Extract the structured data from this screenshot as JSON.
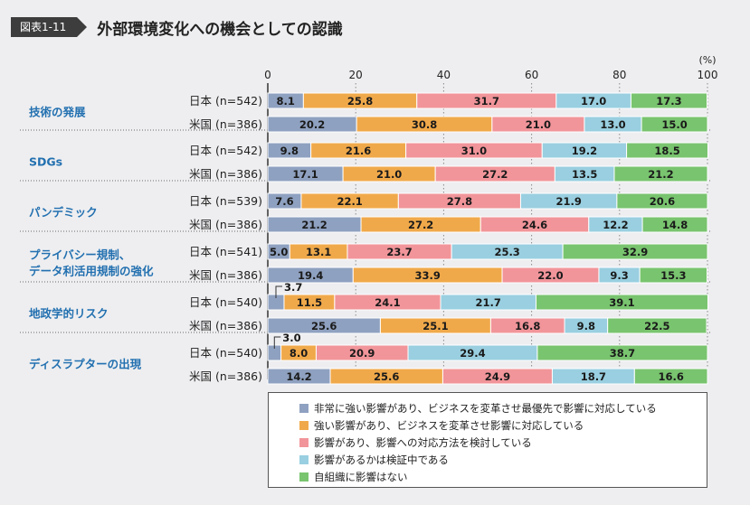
{
  "figure": {
    "tag": "図表1-11",
    "title": "外部環境変化への機会としての認識"
  },
  "chart_data": {
    "type": "bar",
    "orientation": "horizontal",
    "stacked": true,
    "unit_label": "(%)",
    "xlim": [
      0,
      100
    ],
    "x_ticks": [
      "0",
      "20",
      "40",
      "60",
      "80",
      "100"
    ],
    "grid": true,
    "legend_position": "bottom-right",
    "groups": [
      {
        "label": "技術の発展",
        "rows": [
          {
            "label": "日本 (n=542)",
            "values": [
              8.1,
              25.8,
              31.7,
              17.0,
              17.3
            ]
          },
          {
            "label": "米国 (n=386)",
            "values": [
              20.2,
              30.8,
              21.0,
              13.0,
              15.0
            ]
          }
        ]
      },
      {
        "label": "SDGs",
        "rows": [
          {
            "label": "日本 (n=542)",
            "values": [
              9.8,
              21.6,
              31.0,
              19.2,
              18.5
            ]
          },
          {
            "label": "米国 (n=386)",
            "values": [
              17.1,
              21.0,
              27.2,
              13.5,
              21.2
            ]
          }
        ]
      },
      {
        "label": "パンデミック",
        "rows": [
          {
            "label": "日本 (n=539)",
            "values": [
              7.6,
              22.1,
              27.8,
              21.9,
              20.6
            ]
          },
          {
            "label": "米国 (n=386)",
            "values": [
              21.2,
              27.2,
              24.6,
              12.2,
              14.8
            ]
          }
        ]
      },
      {
        "label": "プライバシー規制、\nデータ利活用規制の強化",
        "rows": [
          {
            "label": "日本 (n=541)",
            "values": [
              5.0,
              13.1,
              23.7,
              25.3,
              32.9
            ]
          },
          {
            "label": "米国 (n=386)",
            "values": [
              19.4,
              33.9,
              22.0,
              9.3,
              15.3
            ]
          }
        ]
      },
      {
        "label": "地政学的リスク",
        "rows": [
          {
            "label": "日本 (n=540)",
            "values": [
              3.7,
              11.5,
              24.1,
              21.7,
              39.1
            ]
          },
          {
            "label": "米国 (n=386)",
            "values": [
              25.6,
              25.1,
              16.8,
              9.8,
              22.5
            ]
          }
        ]
      },
      {
        "label": "ディスラプターの出現",
        "rows": [
          {
            "label": "日本 (n=540)",
            "values": [
              3.0,
              8.0,
              20.9,
              29.4,
              38.7
            ]
          },
          {
            "label": "米国 (n=386)",
            "values": [
              14.2,
              25.6,
              24.9,
              18.7,
              16.6
            ]
          }
        ]
      }
    ],
    "series": [
      {
        "name": "非常に強い影響があり、ビジネスを変革させ最優先で影響に対応している",
        "color": "#8fa1c0"
      },
      {
        "name": "強い影響があり、ビジネスを変革させ影響に対応している",
        "color": "#f0a94a"
      },
      {
        "name": "影響があり、影響への対応方法を検討している",
        "color": "#f1959a"
      },
      {
        "name": "影響があるかは検証中である",
        "color": "#99cfe0"
      },
      {
        "name": "自組織に影響はない",
        "color": "#79c46f"
      }
    ],
    "colors": {
      "group_label": "#2270b0",
      "text": "#222222"
    }
  }
}
